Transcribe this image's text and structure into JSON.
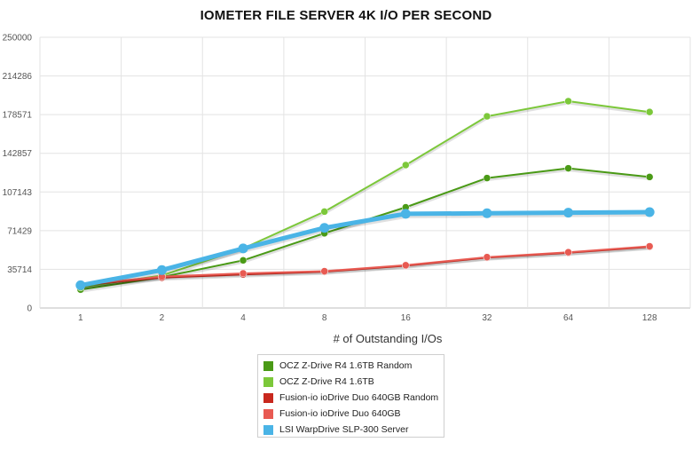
{
  "chart_data": {
    "type": "line",
    "title": "IOMETER FILE SERVER 4K I/O PER SECOND",
    "xlabel": "# of Outstanding I/Os",
    "ylabel": "",
    "categories": [
      "1",
      "2",
      "4",
      "8",
      "16",
      "32",
      "64",
      "128"
    ],
    "yticks": [
      "0",
      "35714",
      "71429",
      "107143",
      "142857",
      "178571",
      "214286",
      "250000"
    ],
    "ylim": [
      0,
      250000
    ],
    "grid": true,
    "legend_position": "bottom",
    "series": [
      {
        "name": "OCZ Z-Drive R4 1.6TB Random",
        "color": "#4a9a16",
        "values": [
          17000,
          28500,
          44000,
          69000,
          93000,
          120000,
          129000,
          121000
        ]
      },
      {
        "name": "OCZ Z-Drive R4 1.6TB",
        "color": "#7cc83a",
        "values": [
          19000,
          30000,
          55000,
          89000,
          132000,
          177000,
          191000,
          181000
        ]
      },
      {
        "name": "Fusion-io ioDrive Duo 640GB Random",
        "color": "#c8281e",
        "values": [
          21000,
          28000,
          31000,
          33500,
          39000,
          46500,
          51000,
          56500
        ]
      },
      {
        "name": "Fusion-io ioDrive Duo 640GB",
        "color": "#e85a52",
        "values": [
          21500,
          29000,
          32000,
          34000,
          39500,
          47000,
          51500,
          57000
        ]
      },
      {
        "name": "LSI WarpDrive SLP-300 Server",
        "color": "#4ab4e6",
        "values": [
          21000,
          35000,
          55000,
          74000,
          87000,
          87500,
          88000,
          88500
        ]
      }
    ]
  }
}
